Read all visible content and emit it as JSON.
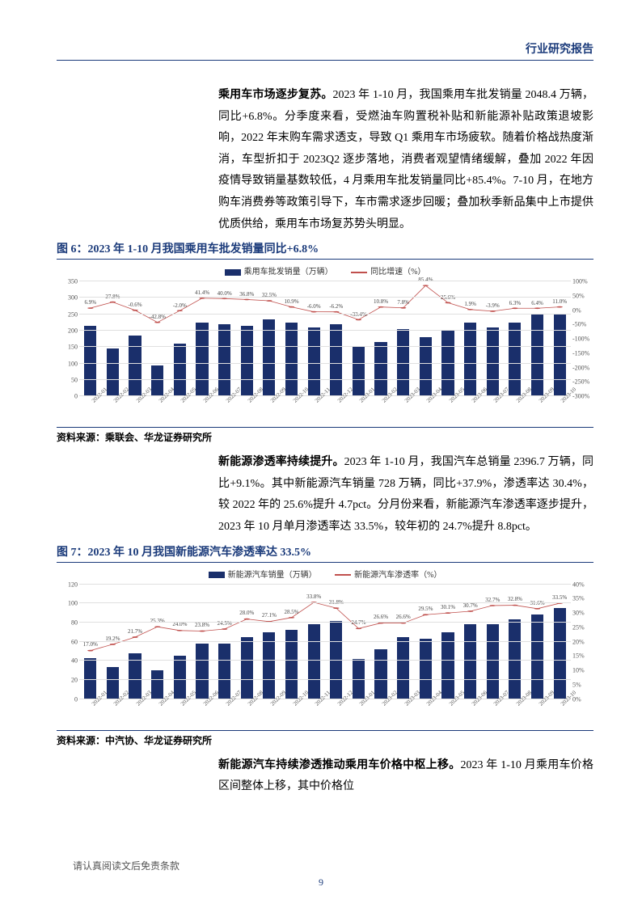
{
  "header": {
    "title": "行业研究报告"
  },
  "paragraph1": {
    "lead": "乘用车市场逐步复苏。",
    "body": "2023 年 1-10 月，我国乘用车批发销量 2048.4 万辆，同比+6.8%。分季度来看，受燃油车购置税补贴和新能源补贴政策退坡影响，2022 年末购车需求透支，导致 Q1 乘用车市场疲软。随着价格战热度渐消，车型折扣于 2023Q2 逐步落地，消费者观望情绪缓解，叠加 2022 年因疫情导致销量基数较低，4 月乘用车批发销量同比+85.4%。7-10 月，在地方购车消费券等政策引导下，车市需求逐步回暖；叠加秋季新品集中上市提供优质供给，乘用车市场复苏势头明显。"
  },
  "figure6": {
    "title": "图 6：2023 年 1-10 月我国乘用车批发销量同比+6.8%",
    "legend_bar": "乘用车批发销量（万辆）",
    "legend_line": "同比增速（%）",
    "source": "资料来源：乘联会、华龙证券研究所",
    "bar_color": "#1a2f6b",
    "line_color": "#c0504d",
    "y_left": {
      "min": 0,
      "max": 350,
      "ticks": [
        0,
        50,
        100,
        150,
        200,
        250,
        300,
        350
      ]
    },
    "y_right": {
      "min": -300,
      "max": 100,
      "ticks": [
        -300,
        -250,
        -200,
        -150,
        -100,
        -50,
        0,
        50,
        100
      ]
    },
    "x_labels": [
      "2022-01",
      "2022-02",
      "2022-03",
      "2022-04",
      "2022-05",
      "2022-06",
      "2022-07",
      "2022-08",
      "2022-09",
      "2022-10",
      "2022-11",
      "2022-12",
      "2023-01",
      "2023-02",
      "2023-03",
      "2023-04",
      "2023-05",
      "2023-06",
      "2023-07",
      "2023-08",
      "2023-09",
      "2023-10"
    ],
    "bar_values": [
      215,
      145,
      185,
      95,
      160,
      225,
      220,
      215,
      235,
      225,
      210,
      220,
      150,
      165,
      205,
      180,
      200,
      225,
      210,
      225,
      250,
      250
    ],
    "line_values": [
      6.9,
      27.8,
      -0.6,
      -42.8,
      -2.0,
      41.4,
      40.0,
      36.8,
      32.5,
      10.9,
      -6.0,
      -6.2,
      -33.4,
      10.8,
      7.8,
      85.4,
      25.6,
      1.9,
      -3.9,
      6.3,
      6.4,
      11.0
    ],
    "line_labels": [
      "6.9%",
      "27.8%",
      "-0.6%",
      "-42.8%",
      "-2.0%",
      "41.4%",
      "40.0%",
      "36.8%",
      "32.5%",
      "10.9%",
      "-6.0%",
      "-6.2%",
      "-33.4%",
      "10.8%",
      "7.8%",
      "85.4%",
      "25.6%",
      "1.9%",
      "-3.9%",
      "6.3%",
      "6.4%",
      "11.0%"
    ]
  },
  "paragraph2": {
    "lead": "新能源渗透率持续提升。",
    "body": "2023 年 1-10 月，我国汽车总销量 2396.7 万辆，同比+9.1%。其中新能源汽车销量 728 万辆，同比+37.9%，渗透率达 30.4%，较 2022 年的 25.6%提升 4.7pct。分月份来看，新能源汽车渗透率逐步提升，2023 年 10 月单月渗透率达 33.5%，较年初的 24.7%提升 8.8pct。"
  },
  "figure7": {
    "title": "图 7：2023 年 10 月我国新能源汽车渗透率达 33.5%",
    "legend_bar": "新能源汽车销量（万辆）",
    "legend_line": "新能源汽车渗透率（%）",
    "source": "资料来源：中汽协、华龙证券研究所",
    "bar_color": "#1a2f6b",
    "line_color": "#c0504d",
    "y_left": {
      "min": 0,
      "max": 120,
      "ticks": [
        0,
        20,
        40,
        60,
        80,
        100,
        120
      ]
    },
    "y_right": {
      "min": 0,
      "max": 40,
      "ticks": [
        0,
        5,
        10,
        15,
        20,
        25,
        30,
        35,
        40
      ]
    },
    "x_labels": [
      "2022-01",
      "2022-02",
      "2022-03",
      "2022-04",
      "2022-05",
      "2022-06",
      "2022-07",
      "2022-08",
      "2022-09",
      "2022-10",
      "2022-11",
      "2022-12",
      "2023-01",
      "2023-02",
      "2023-03",
      "2023-04",
      "2023-05",
      "2023-06",
      "2023-07",
      "2023-08",
      "2023-09",
      "2023-10"
    ],
    "bar_values": [
      43,
      33,
      48,
      30,
      45,
      58,
      58,
      65,
      70,
      72,
      78,
      82,
      42,
      52,
      65,
      63,
      70,
      78,
      78,
      83,
      88,
      95
    ],
    "line_values": [
      17.0,
      19.2,
      21.7,
      25.3,
      24.0,
      23.8,
      24.5,
      28.0,
      27.1,
      28.5,
      33.8,
      31.8,
      24.7,
      26.6,
      26.6,
      29.5,
      30.1,
      30.7,
      32.7,
      32.8,
      31.6,
      33.5
    ],
    "line_labels": [
      "17.0%",
      "19.2%",
      "21.7%",
      "25.3%",
      "24.0%",
      "23.8%",
      "24.5%",
      "28.0%",
      "27.1%",
      "28.5%",
      "33.8%",
      "31.8%",
      "24.7%",
      "26.6%",
      "26.6%",
      "29.5%",
      "30.1%",
      "30.7%",
      "32.7%",
      "32.8%",
      "31.6%",
      "33.5%"
    ]
  },
  "paragraph3": {
    "lead": "新能源汽车持续渗透推动乘用车价格中枢上移。",
    "body": "2023 年 1-10 月乘用车价格区间整体上移，其中价格位"
  },
  "footer": {
    "disclaimer": "请认真阅读文后免责条款",
    "page": "9"
  }
}
